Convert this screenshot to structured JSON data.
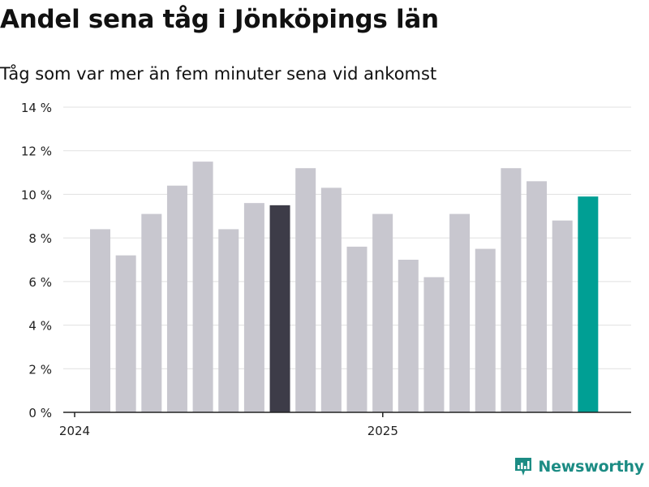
{
  "header": {
    "title": "Andel sena tåg i Jönköpings län",
    "subtitle": "Tåg som var mer än fem minuter sena vid ankomst"
  },
  "brand": {
    "name": "Newsworthy"
  },
  "colors": {
    "bar_default": "#c8c7cf",
    "bar_highlight_dark": "#3d3c48",
    "bar_highlight_accent": "#009f94",
    "grid": "#e1e1e1",
    "axis": "#222222",
    "text": "#222222",
    "brand": "#1c8c84"
  },
  "chart_data": {
    "type": "bar",
    "title": "Andel sena tåg i Jönköpings län",
    "subtitle": "Tåg som var mer än fem minuter sena vid ankomst",
    "xlabel": "",
    "ylabel": "",
    "ylim": [
      0,
      14
    ],
    "yticks": [
      0,
      2,
      4,
      6,
      8,
      10,
      12,
      14
    ],
    "ytick_labels": [
      "0 %",
      "2 %",
      "4 %",
      "6 %",
      "8 %",
      "10 %",
      "12 %",
      "14 %"
    ],
    "xtick_labels": [
      {
        "label": "2024",
        "at_month": 0
      },
      {
        "label": "2025",
        "at_month": 12
      }
    ],
    "grid": true,
    "values": [
      8.4,
      7.2,
      9.1,
      10.4,
      11.5,
      8.4,
      9.6,
      9.5,
      11.2,
      10.3,
      7.6,
      9.1,
      7.0,
      6.2,
      9.1,
      7.5,
      11.2,
      10.6,
      8.8,
      9.9
    ],
    "highlight": {
      "dark_index": 7,
      "accent_index": 19
    }
  }
}
